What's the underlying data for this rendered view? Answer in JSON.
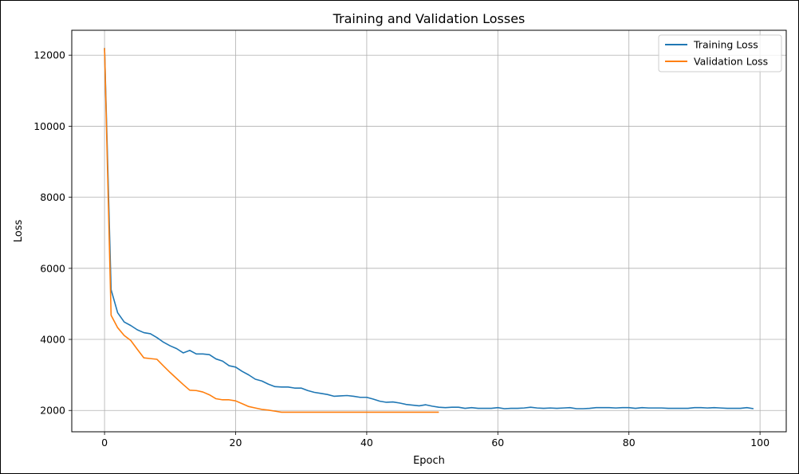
{
  "chart_data": {
    "type": "line",
    "title": "Training and Validation Losses",
    "xlabel": "Epoch",
    "ylabel": "Loss",
    "xlim": [
      -5,
      104
    ],
    "ylim": [
      1400,
      12700
    ],
    "xticks": [
      0,
      20,
      40,
      60,
      80,
      100
    ],
    "yticks": [
      2000,
      4000,
      6000,
      8000,
      10000,
      12000
    ],
    "grid": true,
    "legend_position": "top-right",
    "series": [
      {
        "name": "Training Loss",
        "color": "#1f77b4",
        "x": [
          0,
          1,
          2,
          3,
          4,
          5,
          6,
          7,
          8,
          9,
          10,
          11,
          12,
          13,
          14,
          15,
          16,
          17,
          18,
          19,
          20,
          21,
          22,
          23,
          24,
          25,
          26,
          27,
          28,
          29,
          30,
          31,
          32,
          33,
          34,
          35,
          36,
          37,
          38,
          39,
          40,
          41,
          42,
          43,
          44,
          45,
          46,
          47,
          48,
          49,
          50,
          51,
          52,
          53,
          54,
          55,
          56,
          57,
          58,
          59,
          60,
          61,
          62,
          63,
          64,
          65,
          66,
          67,
          68,
          69,
          70,
          71,
          72,
          73,
          74,
          75,
          76,
          77,
          78,
          79,
          80,
          81,
          82,
          83,
          84,
          85,
          86,
          87,
          88,
          89,
          90,
          91,
          92,
          93,
          94,
          95,
          96,
          97,
          98,
          99
        ],
        "y": [
          12200,
          5400,
          4750,
          4490,
          4390,
          4270,
          4190,
          4160,
          4050,
          3920,
          3820,
          3740,
          3620,
          3690,
          3590,
          3590,
          3570,
          3450,
          3390,
          3260,
          3220,
          3100,
          3000,
          2880,
          2830,
          2740,
          2670,
          2660,
          2660,
          2630,
          2630,
          2560,
          2510,
          2480,
          2450,
          2400,
          2410,
          2420,
          2400,
          2370,
          2370,
          2320,
          2260,
          2230,
          2240,
          2210,
          2170,
          2150,
          2130,
          2160,
          2120,
          2090,
          2080,
          2090,
          2090,
          2060,
          2080,
          2060,
          2060,
          2060,
          2080,
          2050,
          2060,
          2060,
          2070,
          2090,
          2070,
          2060,
          2070,
          2060,
          2070,
          2080,
          2050,
          2050,
          2060,
          2080,
          2080,
          2080,
          2070,
          2080,
          2080,
          2060,
          2080,
          2070,
          2070,
          2070,
          2060,
          2060,
          2060,
          2060,
          2080,
          2080,
          2070,
          2080,
          2070,
          2060,
          2060,
          2060,
          2080,
          2050
        ]
      },
      {
        "name": "Validation Loss",
        "color": "#ff7f0e",
        "x": [
          0,
          1,
          2,
          3,
          4,
          5,
          6,
          7,
          8,
          9,
          10,
          11,
          12,
          13,
          14,
          15,
          16,
          17,
          18,
          19,
          20,
          21,
          22,
          23,
          24,
          25,
          26,
          27,
          28,
          29,
          30,
          31,
          32,
          33,
          34,
          35,
          36,
          37,
          38,
          39,
          40,
          41,
          42,
          43,
          44,
          45,
          46,
          47,
          48,
          49,
          50,
          51
        ],
        "y": [
          12200,
          4680,
          4330,
          4110,
          3970,
          3720,
          3480,
          3460,
          3440,
          3250,
          3070,
          2900,
          2730,
          2570,
          2560,
          2520,
          2440,
          2330,
          2300,
          2300,
          2270,
          2190,
          2110,
          2070,
          2030,
          2010,
          1980,
          1950,
          1950,
          1950,
          1950,
          1950,
          1950,
          1950,
          1950,
          1950,
          1950,
          1950,
          1950,
          1950,
          1950,
          1950,
          1950,
          1950,
          1950,
          1950,
          1950,
          1950,
          1950,
          1950,
          1950,
          1950
        ]
      }
    ]
  }
}
